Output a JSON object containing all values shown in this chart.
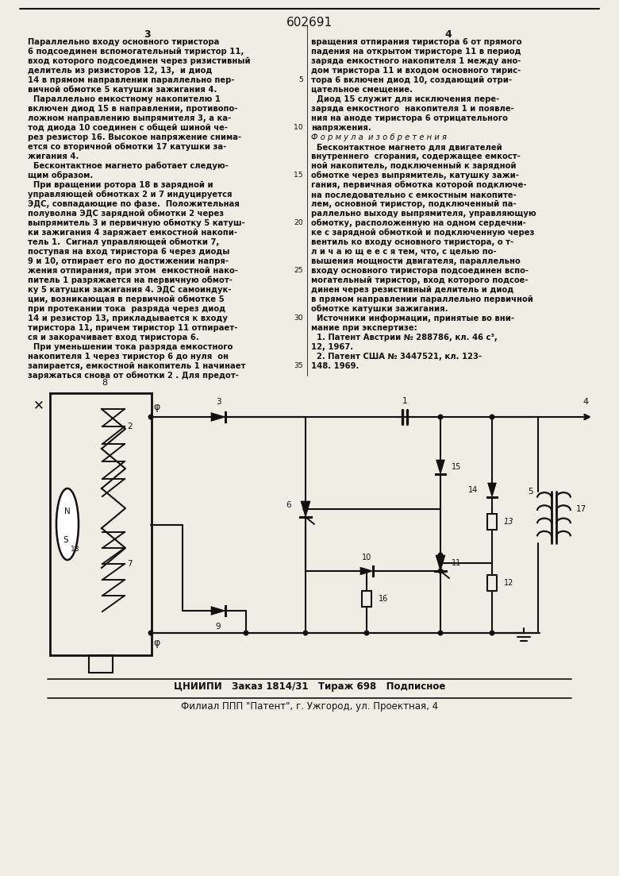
{
  "bg": "#f0ede4",
  "tc": "#111111",
  "title": "602691",
  "fs_body": 7.2,
  "fs_title": 11,
  "col3_lines": [
    "Параллельно входу основного тиристора",
    "6 подсоединен вспомогательный тиристор 11,",
    "вход которого подсоединен через ризистивный",
    "делитель из ризисторов 12, 13,  и диод",
    "14 в прямом направлении параллельно пер-",
    "вичной обмотке 5 катушки зажигания 4.",
    "  Параллельно емкостному накопителю 1",
    "включен диод 15 в направлении, противопо-",
    "ложном направлению выпрямителя 3, а ка-",
    "тод диода 10 соединен с общей шиной че-",
    "рез резистор 16. Высокое напряжение снима-",
    "ется со вторичной обмотки 17 катушки за-",
    "жигания 4.",
    "  Бесконтактное магнето работает следую-",
    "щим образом.",
    "  При вращении ротора 18 в зарядной и",
    "управляющей обмотках 2 и 7 индуцируется",
    "ЭДС, совпадающие по фазе.  Положительная",
    "полуволна ЭДС зарядной обмотки 2 через",
    "выпрямитель 3 и первичную обмотку 5 катуш-",
    "ки зажигания 4 заряжает емкостной накопи-",
    "тель 1.  Сигнал управляющей обмотки 7,",
    "поступая на вход тиристора 6 через диоды",
    "9 и 10, отпирает его по достижении напря-",
    "жения отпирания, при этом  емкостной нако-",
    "питель 1 разряжается на первичную обмот-",
    "ку 5 катушки зажигания 4. ЭДС самоиндук-",
    "ции, возникающая в первичной обмотке 5",
    "при протекании тока  разряда через диод",
    "14 и резистор 13, прикладывается к входу",
    "тиристора 11, причем тиристор 11 отпирает-",
    "ся и закорачивает вход тиристора 6.",
    "  При уменьшении тока разряда емкостного",
    "накопителя 1 через тиристор 6 до нуля  он",
    "запирается, емкостной накопитель 1 начинает",
    "заряжаться снова от обмотки 2 . Для предот-"
  ],
  "col4_lines": [
    "вращения отпирания тиристора 6 от прямого",
    "падения на открытом тиристоре 11 в период",
    "заряда емкостного накопителя 1 между ано-",
    "дом тиристора 11 и входом основного тирис-",
    "тора 6 включен диод 10, создающий отри-",
    "цательное смещение.",
    "  Диод 15 служит для исключения пере-",
    "заряда емкостного  накопителя 1 и появле-",
    "ния на аноде тиристора 6 отрицательного",
    "напряжения.",
    "Ф о р м у л а  и з о б р е т е н и я",
    "  Бесконтактное магнето для двигателей",
    "внутреннего  сгорания, содержащее емкост-",
    "ной накопитель, подключенный к зарядной",
    "обмотке через выпрямитель, катушку зажи-",
    "гания, первичная обмотка которой подключе-",
    "на последовательно с емкостным накопите-",
    "лем, основной тиристор, подключенный па-",
    "раллельно выходу выпрямителя, управляющую",
    "обмотку, расположенную на одном сердечни-",
    "ке с зарядной обмоткой и подключенную через",
    "вентиль ко входу основного тиристора, о т-",
    "л и ч а ю щ е е с я тем, что, с целью по-",
    "вышения мощности двигателя, параллельно",
    "входу основного тиристора подсоединен вспо-",
    "могательный тиристор, вход которого подсое-",
    "динен через резистивный делитель и диод",
    "в прямом направлении параллельно первичной",
    "обмотке катушки зажигания.",
    "  Источники информации, принятые во вни-",
    "мание при экспертизе:",
    "  1. Патент Австрии № 288786, кл. 46 с³,",
    "12, 1967.",
    "  2. Патент США № 3447521, кл. 123-",
    "148. 1969."
  ],
  "line_numbers": [
    5,
    10,
    15,
    20,
    25,
    30,
    35
  ],
  "footer1": "ЦНИИПИ   Заказ 1814/31   Тираж 698   Подписное",
  "footer2": "Филиал ППП \"Патент\", г. Ужгород, ул. Проектная, 4"
}
